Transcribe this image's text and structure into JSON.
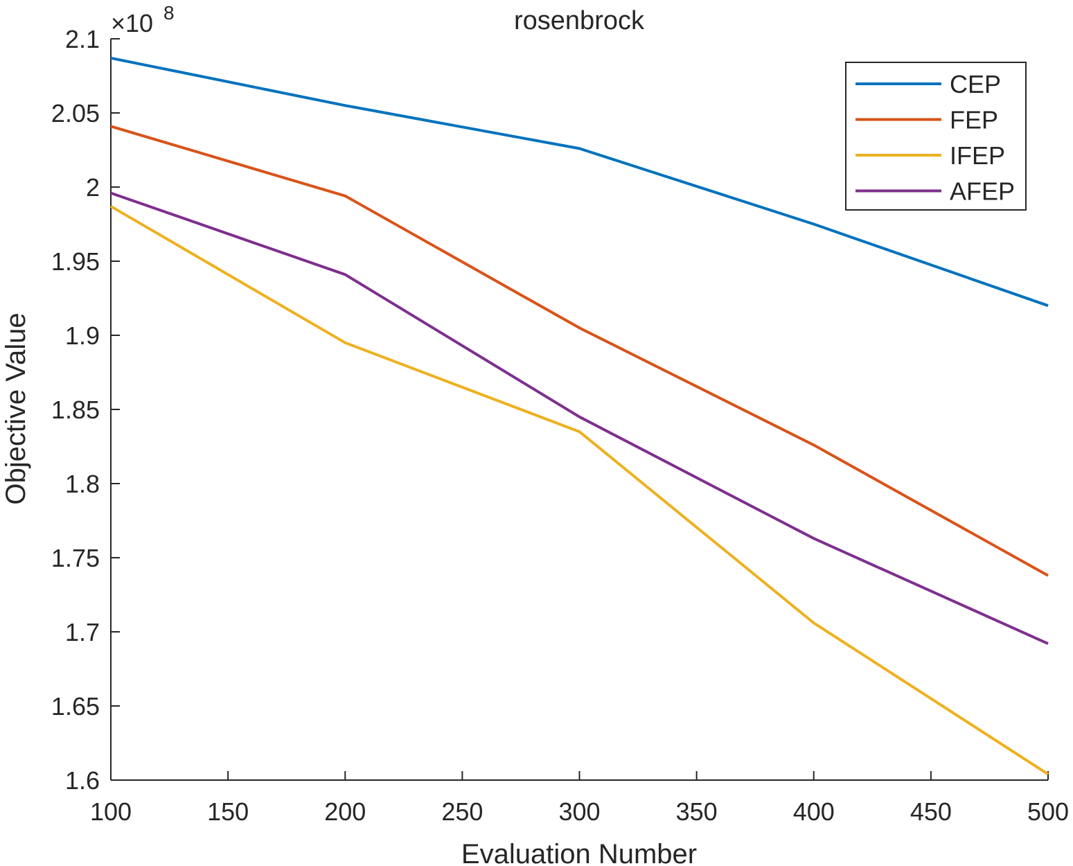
{
  "chart_data": {
    "type": "line",
    "title": "rosenbrock",
    "xlabel": "Evaluation Number",
    "ylabel": "Objective Value",
    "xlim": [
      100,
      500
    ],
    "ylim": [
      1.6,
      2.1
    ],
    "y_exponent_base": "×10",
    "y_exponent_power": "8",
    "x_ticks": [
      100,
      150,
      200,
      250,
      300,
      350,
      400,
      450,
      500
    ],
    "x_tick_labels": [
      "100",
      "150",
      "200",
      "250",
      "300",
      "350",
      "400",
      "450",
      "500"
    ],
    "y_ticks": [
      1.6,
      1.65,
      1.7,
      1.75,
      1.8,
      1.85,
      1.9,
      1.95,
      2.0,
      2.05,
      2.1
    ],
    "y_tick_labels": [
      "1.6",
      "1.65",
      "1.7",
      "1.75",
      "1.8",
      "1.85",
      "1.9",
      "1.95",
      "2",
      "2.05",
      "2.1"
    ],
    "x": [
      100,
      200,
      300,
      400,
      500
    ],
    "series": [
      {
        "name": "CEP",
        "color": "#0072bd",
        "values": [
          2.087,
          2.055,
          2.026,
          1.975,
          1.92
        ]
      },
      {
        "name": "FEP",
        "color": "#d95319",
        "values": [
          2.041,
          1.994,
          1.905,
          1.826,
          1.738
        ]
      },
      {
        "name": "IFEP",
        "color": "#edb120",
        "values": [
          1.987,
          1.895,
          1.835,
          1.706,
          1.604
        ]
      },
      {
        "name": "AFEP",
        "color": "#7e2f8e",
        "values": [
          1.996,
          1.941,
          1.845,
          1.763,
          1.692
        ]
      }
    ],
    "legend_position": "top-right",
    "grid": false
  }
}
